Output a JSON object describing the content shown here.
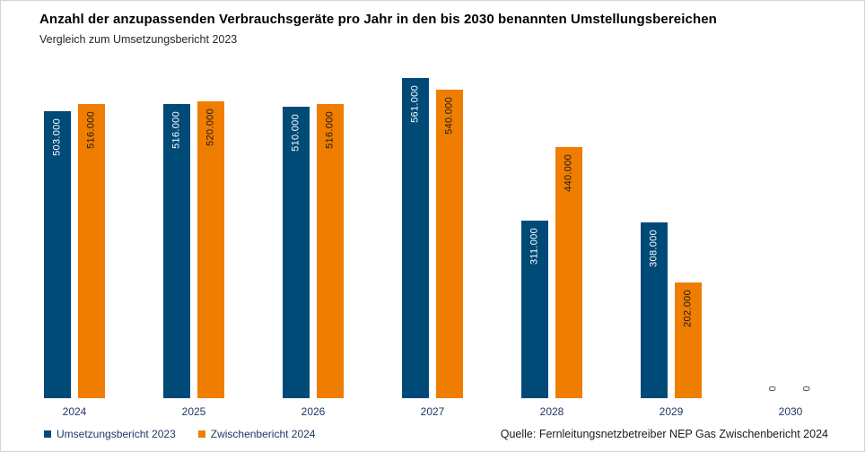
{
  "title": "Anzahl der anzupassenden Verbrauchsgeräte pro Jahr in den bis 2030 benannten Umstellungsbereichen",
  "subtitle": "Vergleich zum Umsetzungsbericht 2023",
  "source": "Quelle: Fernleitungsnetzbetreiber NEP Gas Zwischenbericht 2024",
  "colors": {
    "series1": "#004a78",
    "series2": "#ef7d00",
    "axis_text": "#1f3864",
    "label_on_series1": "#ffffff",
    "label_on_series2": "#1a1a1a",
    "zero_label": "#404040",
    "page_border": "#d4d4d4"
  },
  "legend": [
    {
      "label": "Umsetzungsbericht 2023",
      "color": "#004a78"
    },
    {
      "label": "Zwischenbericht 2024",
      "color": "#ef7d00"
    }
  ],
  "chart_data": {
    "type": "bar",
    "title": "Anzahl der anzupassenden Verbrauchsgeräte pro Jahr in den bis 2030 benannten Umstellungsbereichen",
    "subtitle": "Vergleich zum Umsetzungsbericht 2023",
    "categories": [
      "2024",
      "2025",
      "2026",
      "2027",
      "2028",
      "2029",
      "2030"
    ],
    "series": [
      {
        "name": "Umsetzungsbericht 2023",
        "color": "#004a78",
        "values": [
          503000,
          516000,
          510000,
          561000,
          311000,
          308000,
          0
        ],
        "labels": [
          "503.000",
          "516.000",
          "510.000",
          "561.000",
          "311.000",
          "308.000",
          "0"
        ]
      },
      {
        "name": "Zwischenbericht 2024",
        "color": "#ef7d00",
        "values": [
          516000,
          520000,
          516000,
          540000,
          440000,
          202000,
          0
        ],
        "labels": [
          "516.000",
          "520.000",
          "516.000",
          "540.000",
          "440.000",
          "202.000",
          "0"
        ]
      }
    ],
    "xlabel": "",
    "ylabel": "",
    "ylim": [
      0,
      600000
    ],
    "grid": false,
    "value_labels": "inside-top, rotated 90°",
    "legend_position": "bottom-left"
  }
}
